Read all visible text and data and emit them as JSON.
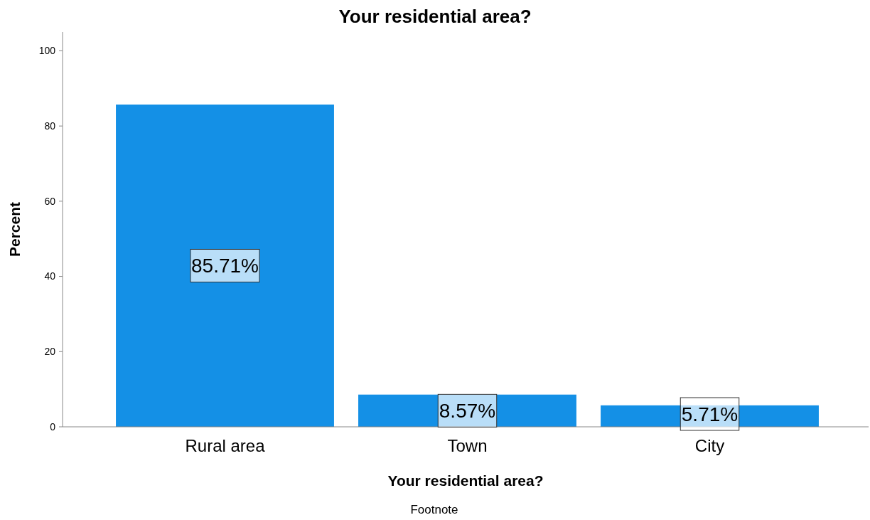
{
  "chart_data": {
    "type": "bar",
    "title": "Your residential area?",
    "xlabel": "Your residential area?",
    "ylabel": "Percent",
    "categories": [
      "Rural area",
      "Town",
      "City"
    ],
    "values": [
      85.71,
      8.57,
      5.71
    ],
    "value_labels": [
      "85.71%",
      "8.57%",
      "5.71%"
    ],
    "color": "#1490e6",
    "ylim": [
      0,
      105
    ],
    "yticks": [
      0,
      20,
      40,
      60,
      80,
      100
    ],
    "grid": false,
    "annotations": [
      "Footnote"
    ]
  }
}
